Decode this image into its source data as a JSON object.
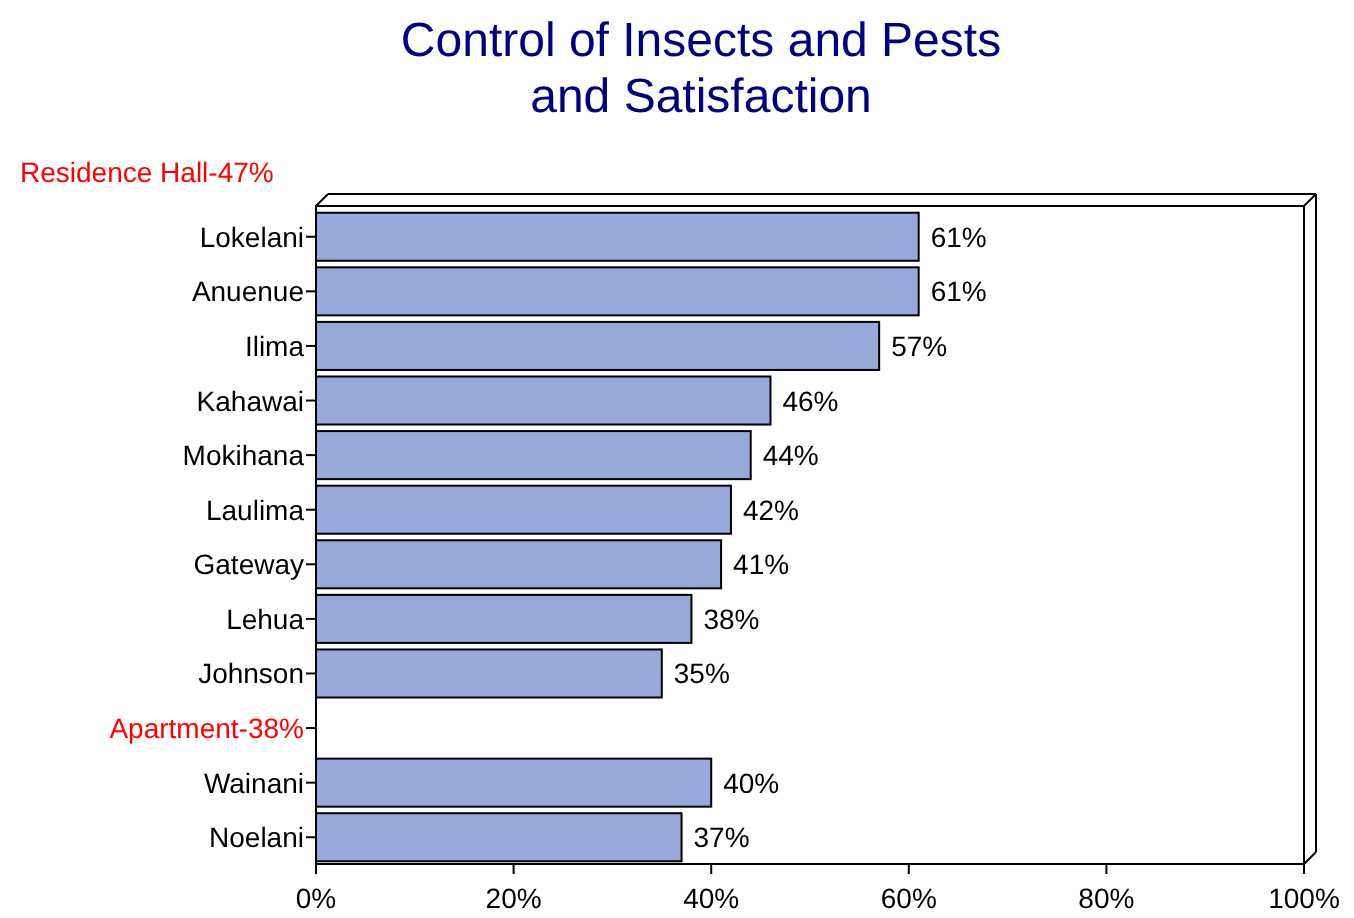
{
  "chart_data": {
    "type": "bar",
    "orientation": "horizontal",
    "title": "Control of Insects and Pests\nand Satisfaction",
    "categories": [
      "Lokelani",
      "Anuenue",
      "Ilima",
      "Kahawai",
      "Mokihana",
      "Laulima",
      "Gateway",
      "Lehua",
      "Johnson",
      null,
      "Wainani",
      "Noelani"
    ],
    "values": [
      61,
      61,
      57,
      46,
      44,
      42,
      41,
      38,
      35,
      null,
      40,
      37
    ],
    "value_labels": [
      "61%",
      "61%",
      "57%",
      "46%",
      "44%",
      "42%",
      "41%",
      "38%",
      "35%",
      null,
      "40%",
      "37%"
    ],
    "color": "#98a8d8",
    "xlim": [
      0,
      100
    ],
    "xticks": [
      {
        "value": 0,
        "label": "0%"
      },
      {
        "value": 20,
        "label": "20%"
      },
      {
        "value": 40,
        "label": "40%"
      },
      {
        "value": 60,
        "label": "60%"
      },
      {
        "value": 80,
        "label": "80%"
      },
      {
        "value": 100,
        "label": "100%"
      }
    ],
    "annotations": [
      "Residence Hall-47%",
      "Apartment-38%"
    ]
  }
}
